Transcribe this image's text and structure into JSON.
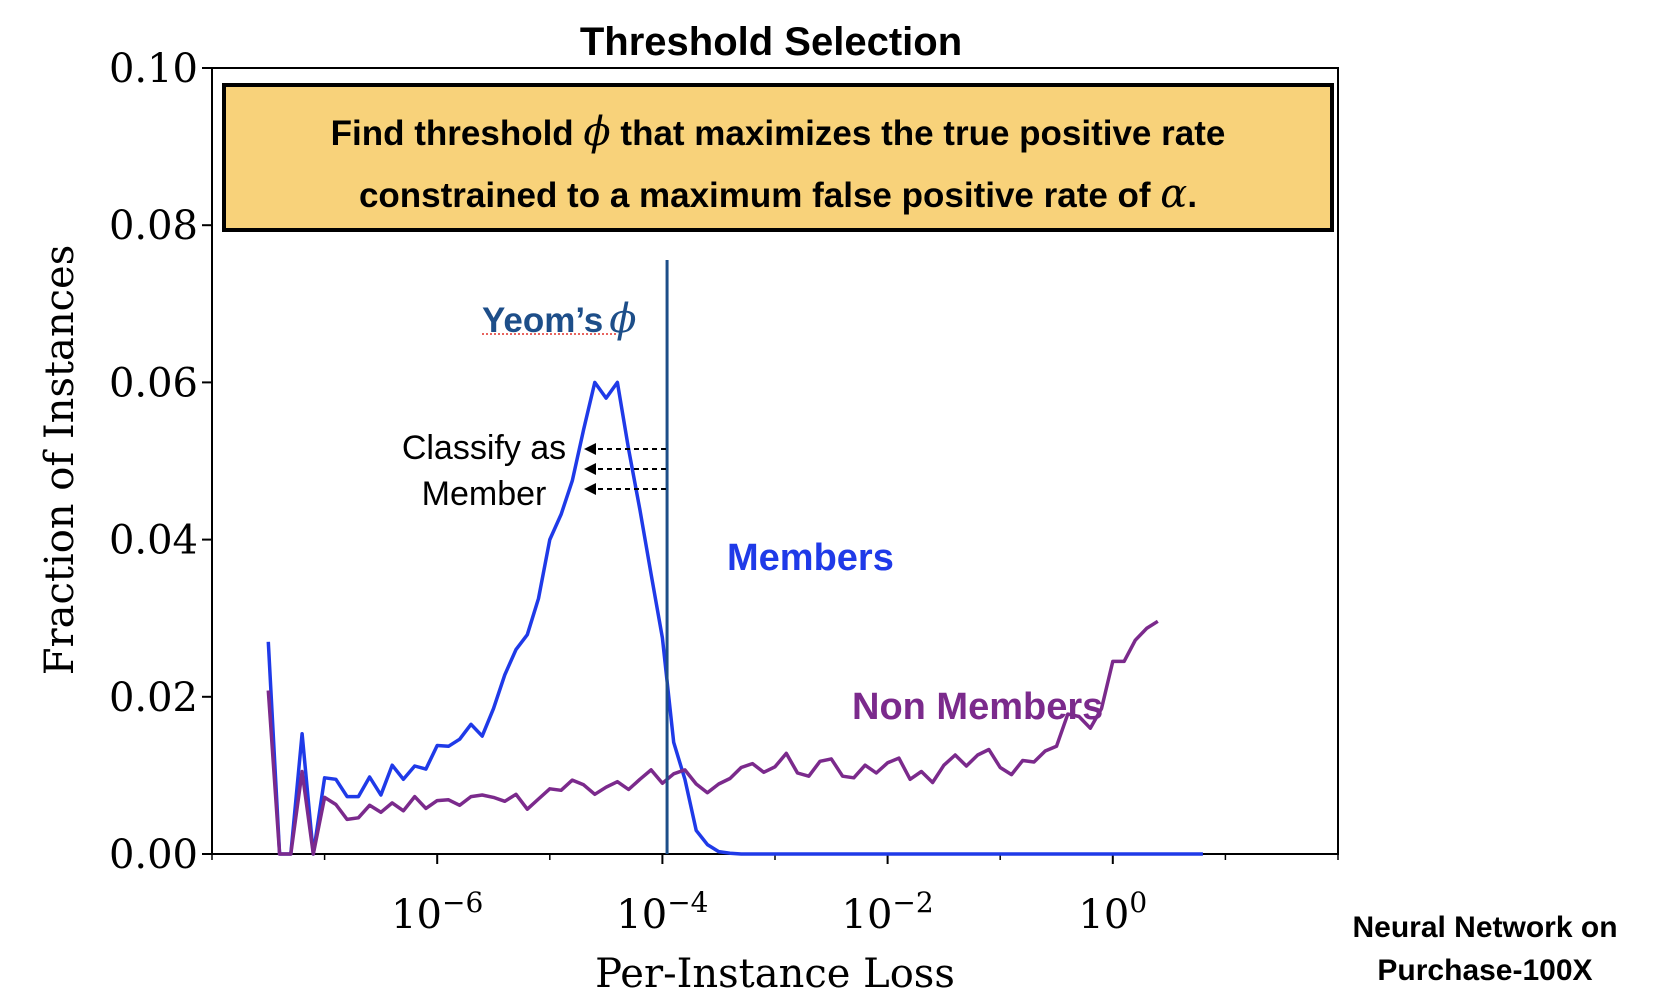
{
  "chart_data": {
    "type": "line",
    "title": "Threshold Selection",
    "xlabel": "Per-Instance Loss",
    "ylabel": "Fraction of Instances",
    "x_scale": "log",
    "xlim": [
      1e-08,
      100
    ],
    "ylim": [
      0,
      0.1
    ],
    "x_ticks": [
      {
        "value": 1e-06,
        "label": "10",
        "exp": "−6"
      },
      {
        "value": 0.0001,
        "label": "10",
        "exp": "−4"
      },
      {
        "value": 0.01,
        "label": "10",
        "exp": "−2"
      },
      {
        "value": 1,
        "label": "10",
        "exp": "0"
      }
    ],
    "y_ticks": [
      {
        "value": 0.0,
        "label": "0.00"
      },
      {
        "value": 0.02,
        "label": "0.02"
      },
      {
        "value": 0.04,
        "label": "0.04"
      },
      {
        "value": 0.06,
        "label": "0.06"
      },
      {
        "value": 0.08,
        "label": "0.08"
      },
      {
        "value": 0.1,
        "label": "0.10"
      }
    ],
    "x_log10": [
      -7.5,
      -7.4,
      -7.3,
      -7.2,
      -7.1,
      -7.0,
      -6.9,
      -6.8,
      -6.7,
      -6.6,
      -6.5,
      -6.4,
      -6.3,
      -6.2,
      -6.1,
      -6.0,
      -5.9,
      -5.8,
      -5.7,
      -5.6,
      -5.5,
      -5.4,
      -5.3,
      -5.2,
      -5.1,
      -5.0,
      -4.9,
      -4.8,
      -4.7,
      -4.6,
      -4.5,
      -4.4,
      -4.3,
      -4.2,
      -4.1,
      -4.0,
      -3.9,
      -3.8,
      -3.7,
      -3.6,
      -3.5,
      -3.4,
      -3.3,
      -3.2,
      -3.1,
      -3.0,
      -2.9,
      -2.8,
      -2.7,
      -2.6,
      -2.5,
      -2.4,
      -2.3,
      -2.2,
      -2.1,
      -2.0,
      -1.9,
      -1.8,
      -1.7,
      -1.6,
      -1.5,
      -1.4,
      -1.3,
      -1.2,
      -1.1,
      -1.0,
      -0.9,
      -0.8,
      -0.7,
      -0.6,
      -0.5,
      -0.4,
      -0.3,
      -0.2,
      -0.1,
      0.0,
      0.1,
      0.2,
      0.3,
      0.4,
      0.5,
      0.6,
      0.7,
      0.8
    ],
    "series": [
      {
        "name": "Members",
        "color": "#1f3ae8",
        "values": [
          0.027,
          0.0,
          0.0,
          0.0153,
          0.0,
          0.0097,
          0.0095,
          0.0073,
          0.0073,
          0.0098,
          0.0075,
          0.0113,
          0.0095,
          0.0112,
          0.0108,
          0.0138,
          0.0137,
          0.0146,
          0.0165,
          0.015,
          0.0185,
          0.0228,
          0.026,
          0.0279,
          0.0325,
          0.04,
          0.0432,
          0.0475,
          0.054,
          0.06,
          0.058,
          0.06,
          0.0515,
          0.0438,
          0.0356,
          0.0275,
          0.0142,
          0.0095,
          0.003,
          0.0012,
          0.0003,
          0.0001,
          0.0,
          0.0,
          0.0,
          0.0,
          0.0,
          0.0,
          0.0,
          0.0,
          0.0,
          0.0,
          0.0,
          0.0,
          0.0,
          0.0,
          0.0,
          0.0,
          0.0,
          0.0,
          0.0,
          0.0,
          0.0,
          0.0,
          0.0,
          0.0,
          0.0,
          0.0,
          0.0,
          0.0,
          0.0,
          0.0,
          0.0,
          0.0,
          0.0,
          0.0,
          0.0,
          0.0,
          0.0,
          0.0,
          0.0,
          0.0,
          0.0,
          0.0
        ]
      },
      {
        "name": "Non Members",
        "color": "#7b2a8c",
        "values": [
          0.0208,
          0.0,
          0.0,
          0.0105,
          0.0,
          0.0072,
          0.0063,
          0.0044,
          0.0046,
          0.0062,
          0.0053,
          0.0065,
          0.0055,
          0.0073,
          0.0058,
          0.0068,
          0.0069,
          0.0062,
          0.0073,
          0.0075,
          0.0072,
          0.0067,
          0.0076,
          0.0057,
          0.007,
          0.0083,
          0.0081,
          0.0094,
          0.0088,
          0.0076,
          0.0085,
          0.0092,
          0.0082,
          0.0095,
          0.0107,
          0.009,
          0.0102,
          0.0107,
          0.0089,
          0.0078,
          0.0089,
          0.0096,
          0.011,
          0.0115,
          0.0104,
          0.0111,
          0.0128,
          0.0103,
          0.0099,
          0.0118,
          0.0121,
          0.0099,
          0.0097,
          0.0113,
          0.0103,
          0.0116,
          0.0122,
          0.0095,
          0.0105,
          0.0091,
          0.0113,
          0.0126,
          0.0112,
          0.0126,
          0.0133,
          0.011,
          0.0101,
          0.0119,
          0.0117,
          0.0131,
          0.0137,
          0.0178,
          0.0175,
          0.016,
          0.0185,
          0.0245,
          0.0245,
          0.0272,
          0.0287,
          0.0296
        ]
      }
    ],
    "threshold_line": {
      "x": 0.00011,
      "color": "#1d4e89"
    },
    "annotations": {
      "info_box": {
        "line1_before": "Find threshold ",
        "line1_symbol": "ϕ",
        "line1_after": " that maximizes the true positive rate",
        "line2_before": "constrained to a maximum false positive rate of ",
        "line2_symbol": "α",
        "line2_after": ".",
        "fill": "#f8d27a",
        "border": "#000000"
      },
      "threshold_label": {
        "text": "Yeom’s",
        "symbol": "ϕ",
        "color": "#1d4e89"
      },
      "classify_line1": "Classify as",
      "classify_line2": "Member",
      "members_label": "Members",
      "non_members_label": "Non Members",
      "footnote_line1": "Neural Network on",
      "footnote_line2": "Purchase-100X"
    },
    "grid": false,
    "legend": "none"
  }
}
